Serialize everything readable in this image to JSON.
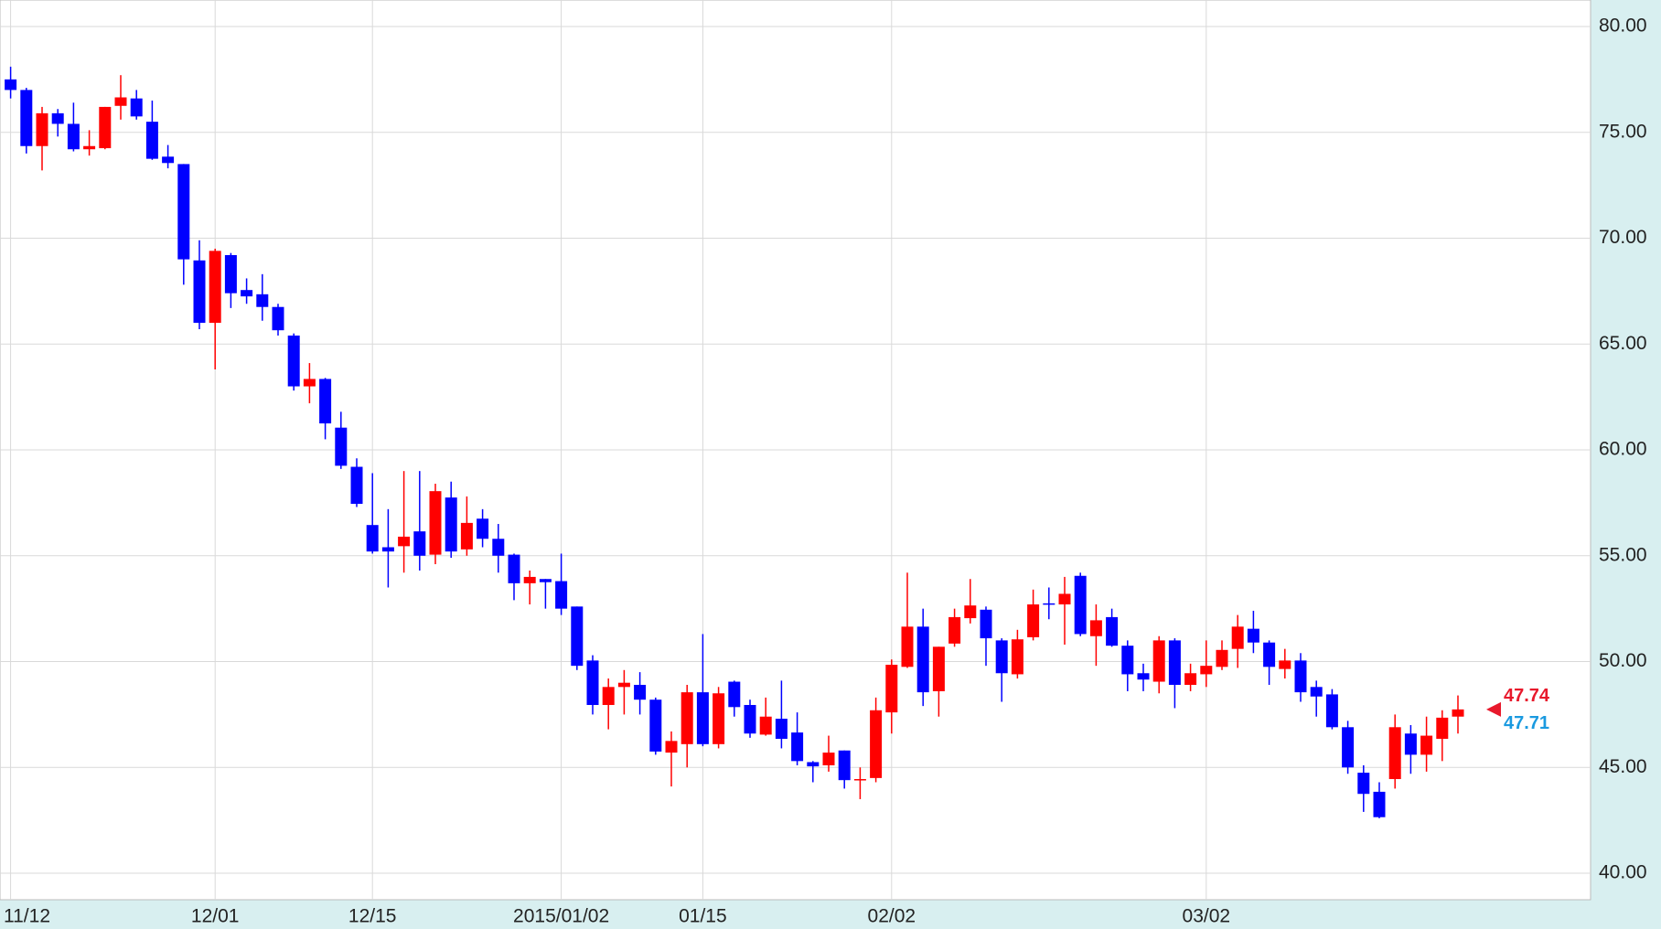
{
  "chart_data": {
    "type": "candlestick",
    "categories": [
      "11/12",
      null,
      null,
      null,
      null,
      null,
      null,
      null,
      null,
      null,
      null,
      null,
      null,
      "12/01",
      null,
      null,
      null,
      null,
      null,
      null,
      null,
      null,
      null,
      "12/15",
      null,
      null,
      null,
      null,
      null,
      null,
      null,
      null,
      null,
      null,
      null,
      "2015/01/02",
      null,
      null,
      null,
      null,
      null,
      null,
      null,
      null,
      "01/15",
      null,
      null,
      null,
      null,
      null,
      null,
      null,
      null,
      null,
      null,
      null,
      "02/02",
      null,
      null,
      null,
      null,
      null,
      null,
      null,
      null,
      null,
      null,
      null,
      null,
      null,
      null,
      null,
      null,
      null,
      null,
      null,
      "03/02",
      null,
      null,
      null,
      null,
      null,
      null,
      null,
      null,
      null,
      null,
      null,
      null,
      null,
      null,
      null,
      null
    ],
    "open": [
      77.5,
      77.0,
      74.35,
      75.9,
      75.4,
      74.2,
      74.25,
      76.25,
      76.6,
      75.5,
      73.85,
      73.5,
      68.95,
      66.0,
      69.2,
      67.55,
      67.35,
      66.75,
      65.4,
      63.0,
      63.35,
      61.05,
      59.2,
      56.45,
      55.4,
      55.45,
      56.15,
      55.05,
      57.75,
      55.3,
      56.75,
      55.8,
      55.05,
      53.7,
      53.9,
      53.8,
      52.6,
      50.05,
      47.95,
      48.8,
      48.9,
      48.2,
      45.7,
      46.1,
      48.55,
      46.1,
      49.05,
      47.95,
      46.55,
      47.3,
      46.65,
      45.25,
      45.1,
      45.8,
      44.4,
      44.5,
      47.6,
      49.75,
      51.65,
      48.6,
      50.85,
      52.05,
      52.45,
      51.0,
      49.4,
      51.15,
      52.75,
      52.7,
      54.05,
      51.2,
      52.1,
      50.75,
      49.45,
      49.05,
      51.0,
      48.9,
      49.4,
      49.75,
      50.6,
      51.55,
      50.9,
      49.65,
      50.05,
      48.8,
      48.45,
      46.9,
      44.75,
      43.85,
      44.45,
      46.6,
      45.6,
      46.35,
      47.4
    ],
    "high": [
      78.1,
      77.1,
      76.2,
      76.1,
      76.4,
      75.1,
      76.2,
      77.7,
      77.0,
      76.5,
      74.4,
      73.5,
      69.9,
      69.5,
      69.3,
      68.1,
      68.3,
      66.9,
      65.5,
      64.1,
      63.4,
      61.8,
      59.6,
      58.9,
      57.2,
      59.0,
      59.0,
      58.4,
      58.5,
      57.8,
      57.2,
      56.5,
      55.1,
      54.3,
      53.9,
      55.1,
      52.6,
      50.3,
      49.2,
      49.6,
      49.5,
      48.3,
      46.7,
      48.9,
      51.3,
      48.8,
      49.1,
      48.2,
      48.3,
      49.1,
      47.6,
      45.3,
      46.5,
      45.8,
      45.0,
      48.3,
      50.1,
      54.2,
      52.5,
      50.7,
      52.5,
      53.9,
      52.6,
      51.1,
      51.5,
      53.4,
      53.5,
      54.0,
      54.2,
      52.7,
      52.5,
      51.0,
      49.9,
      51.2,
      51.1,
      49.9,
      51.0,
      51.0,
      52.2,
      52.4,
      51.0,
      50.6,
      50.4,
      49.1,
      48.7,
      47.2,
      45.1,
      44.3,
      47.5,
      47.0,
      47.4,
      47.7,
      48.4
    ],
    "low": [
      76.6,
      74.0,
      73.2,
      74.8,
      74.1,
      73.9,
      74.2,
      75.6,
      75.6,
      73.7,
      73.3,
      67.8,
      65.7,
      63.8,
      66.7,
      66.9,
      66.1,
      65.4,
      62.8,
      62.2,
      60.5,
      59.1,
      57.3,
      55.1,
      53.5,
      54.2,
      54.3,
      54.6,
      54.9,
      55.0,
      55.4,
      54.2,
      52.9,
      52.7,
      52.5,
      52.2,
      49.6,
      47.5,
      46.8,
      47.5,
      47.5,
      45.6,
      44.1,
      45.0,
      46.0,
      45.9,
      47.4,
      46.4,
      46.5,
      45.9,
      45.1,
      44.3,
      44.8,
      44.0,
      43.5,
      44.3,
      46.6,
      49.7,
      47.9,
      47.4,
      50.7,
      51.8,
      49.8,
      48.1,
      49.2,
      51.0,
      52.0,
      50.8,
      51.2,
      49.8,
      50.7,
      48.6,
      48.6,
      48.5,
      47.8,
      48.6,
      48.8,
      49.6,
      49.7,
      50.4,
      48.9,
      49.2,
      48.1,
      47.4,
      46.8,
      44.7,
      42.9,
      42.6,
      44.0,
      44.7,
      44.8,
      45.3,
      46.6
    ],
    "close": [
      77.0,
      74.35,
      75.9,
      75.4,
      74.2,
      74.35,
      76.2,
      76.65,
      75.75,
      73.75,
      73.55,
      69.0,
      66.0,
      69.4,
      67.4,
      67.25,
      66.75,
      65.65,
      63.0,
      63.35,
      61.25,
      59.25,
      57.45,
      55.2,
      55.2,
      55.9,
      55.0,
      58.05,
      55.2,
      56.55,
      55.8,
      55.0,
      53.7,
      54.0,
      53.75,
      52.5,
      49.8,
      47.95,
      48.8,
      49.0,
      48.2,
      45.75,
      46.25,
      48.55,
      46.1,
      48.5,
      47.85,
      46.6,
      47.4,
      46.35,
      45.3,
      45.05,
      45.7,
      44.4,
      44.45,
      47.7,
      49.85,
      51.65,
      48.55,
      50.7,
      52.1,
      52.65,
      51.1,
      49.45,
      51.05,
      52.7,
      52.7,
      53.2,
      51.3,
      51.95,
      50.75,
      49.4,
      49.15,
      51.0,
      48.9,
      49.45,
      49.8,
      50.55,
      51.65,
      50.9,
      49.75,
      50.05,
      48.55,
      48.35,
      46.9,
      45.0,
      43.75,
      42.65,
      46.9,
      45.6,
      46.5,
      47.35,
      47.74
    ],
    "up_color": "#ff0000",
    "down_color": "#0000ff",
    "price_labels": [
      47.74,
      47.71
    ],
    "price_label_colors": [
      "#e8192c",
      "#1a9ae0"
    ],
    "ylim": [
      38.75,
      81.25
    ],
    "yticks": [
      {
        "value": 40,
        "label": "40.00"
      },
      {
        "value": 45,
        "label": "45.00"
      },
      {
        "value": 50,
        "label": "50.00"
      },
      {
        "value": 55,
        "label": "55.00"
      },
      {
        "value": 60,
        "label": "60.00"
      },
      {
        "value": 65,
        "label": "65.00"
      },
      {
        "value": 70,
        "label": "70.00"
      },
      {
        "value": 75,
        "label": "75.00"
      },
      {
        "value": 80,
        "label": "80.00"
      }
    ],
    "grid": true
  }
}
